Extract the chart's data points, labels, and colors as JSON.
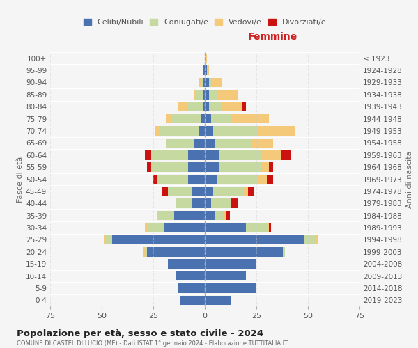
{
  "age_groups": [
    "0-4",
    "5-9",
    "10-14",
    "15-19",
    "20-24",
    "25-29",
    "30-34",
    "35-39",
    "40-44",
    "45-49",
    "50-54",
    "55-59",
    "60-64",
    "65-69",
    "70-74",
    "75-79",
    "80-84",
    "85-89",
    "90-94",
    "95-99",
    "100+"
  ],
  "birth_years": [
    "2019-2023",
    "2014-2018",
    "2009-2013",
    "2004-2008",
    "1999-2003",
    "1994-1998",
    "1989-1993",
    "1984-1988",
    "1979-1983",
    "1974-1978",
    "1969-1973",
    "1964-1968",
    "1959-1963",
    "1954-1958",
    "1949-1953",
    "1944-1948",
    "1939-1943",
    "1934-1938",
    "1929-1933",
    "1924-1928",
    "≤ 1923"
  ],
  "colors": {
    "celibi": "#4A72B0",
    "coniugati": "#C5D9A0",
    "vedovi": "#F5C97A",
    "divorziati": "#CC1111"
  },
  "males": {
    "celibi": [
      12,
      13,
      14,
      18,
      28,
      45,
      20,
      15,
      6,
      6,
      8,
      8,
      8,
      5,
      3,
      2,
      1,
      1,
      1,
      1,
      0
    ],
    "coniugati": [
      0,
      0,
      0,
      0,
      1,
      3,
      8,
      8,
      8,
      12,
      15,
      18,
      18,
      14,
      19,
      14,
      7,
      3,
      1,
      0,
      0
    ],
    "vedovi": [
      0,
      0,
      0,
      0,
      1,
      1,
      1,
      0,
      0,
      0,
      0,
      0,
      0,
      0,
      2,
      3,
      5,
      1,
      1,
      0,
      0
    ],
    "divorziati": [
      0,
      0,
      0,
      0,
      0,
      0,
      0,
      0,
      0,
      3,
      2,
      2,
      3,
      0,
      0,
      0,
      0,
      0,
      0,
      0,
      0
    ]
  },
  "females": {
    "celibi": [
      13,
      25,
      20,
      25,
      38,
      48,
      20,
      5,
      3,
      4,
      6,
      7,
      7,
      5,
      4,
      3,
      2,
      2,
      2,
      1,
      0
    ],
    "coniugati": [
      0,
      0,
      0,
      0,
      1,
      6,
      10,
      4,
      10,
      15,
      20,
      20,
      20,
      18,
      22,
      10,
      6,
      4,
      1,
      0,
      0
    ],
    "vedovi": [
      0,
      0,
      0,
      0,
      0,
      1,
      1,
      1,
      0,
      2,
      4,
      4,
      10,
      10,
      18,
      18,
      10,
      10,
      5,
      1,
      1
    ],
    "divorziati": [
      0,
      0,
      0,
      0,
      0,
      0,
      1,
      2,
      3,
      3,
      3,
      2,
      5,
      0,
      0,
      0,
      2,
      0,
      0,
      0,
      0
    ]
  },
  "title": "Popolazione per età, sesso e stato civile - 2024",
  "subtitle": "COMUNE DI CASTEL DI LUCIO (ME) - Dati ISTAT 1° gennaio 2024 - Elaborazione TUTTITALIA.IT",
  "xlabel_right": "Femmine",
  "ylabel_left": "Fasce di età",
  "ylabel_right": "Anni di nascita",
  "xlim": 75,
  "legend_labels": [
    "Celibi/Nubili",
    "Coniugati/e",
    "Vedovi/e",
    "Divorziati/e"
  ],
  "background_color": "#f5f5f5"
}
